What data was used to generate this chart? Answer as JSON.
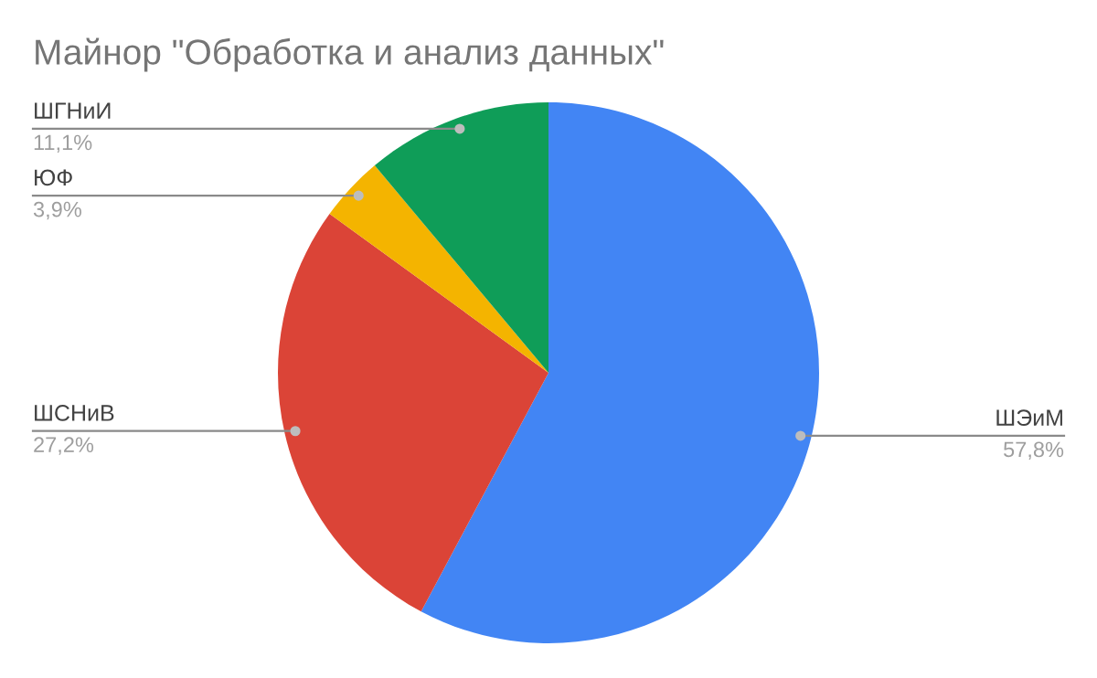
{
  "chart_data": {
    "type": "pie",
    "title": "Майнор \"Обработка и анализ данных\"",
    "categories": [
      "ШЭиМ",
      "ШСНиВ",
      "ЮФ",
      "ШГНиИ"
    ],
    "values": [
      57.8,
      27.2,
      3.9,
      11.1
    ],
    "colors": [
      "#4285f4",
      "#db4437",
      "#f4b400",
      "#0f9d58"
    ],
    "value_labels": [
      "57,8%",
      "27,2%",
      "3,9%",
      "11,1%"
    ]
  }
}
